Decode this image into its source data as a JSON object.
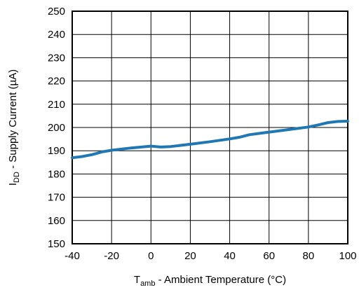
{
  "chart_data": {
    "type": "line",
    "title": "",
    "xlabel": {
      "main": "T",
      "sub": "amb",
      "rest": " - Ambient Temperature (°C)"
    },
    "ylabel": {
      "main": "I",
      "sub": "DD",
      "rest": " - Supply Current (µA)"
    },
    "xlim": [
      -40,
      100
    ],
    "ylim": [
      150,
      250
    ],
    "xticks": [
      "-40",
      "-20",
      "0",
      "20",
      "40",
      "60",
      "80",
      "100"
    ],
    "yticks": [
      "150",
      "160",
      "170",
      "180",
      "190",
      "200",
      "210",
      "220",
      "230",
      "240",
      "250"
    ],
    "grid": true,
    "series": [
      {
        "color": "#1f77b4",
        "x": [
          -40,
          -35,
          -30,
          -25,
          -20,
          -10,
          0,
          5,
          10,
          20,
          30,
          40,
          45,
          50,
          60,
          70,
          80,
          85,
          90,
          95,
          100
        ],
        "y": [
          187,
          187.5,
          188.3,
          189.5,
          190.2,
          191.2,
          192.0,
          191.6,
          191.8,
          192.8,
          193.9,
          195.1,
          195.8,
          196.9,
          198.0,
          199.1,
          200.2,
          201.1,
          202.1,
          202.6,
          202.7
        ]
      }
    ]
  }
}
